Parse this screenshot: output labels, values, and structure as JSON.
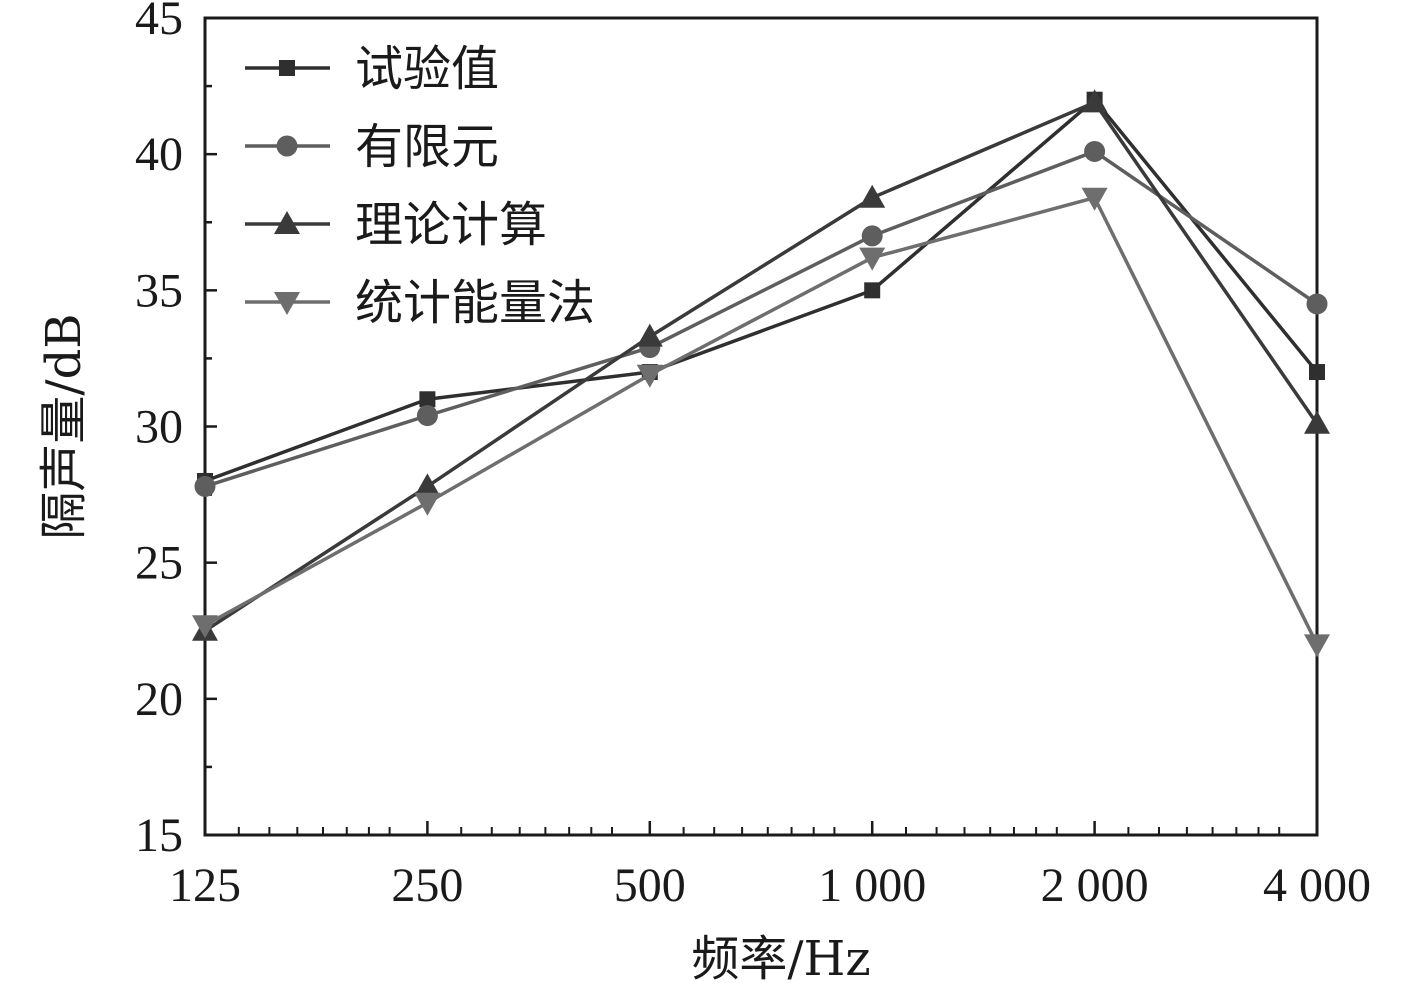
{
  "chart_data": {
    "type": "line",
    "xlabel": "频率/Hz",
    "ylabel": "隔声量/dB",
    "categories": [
      "125",
      "250",
      "500",
      "1 000",
      "2 000",
      "4 000"
    ],
    "x": [
      125,
      250,
      500,
      1000,
      2000,
      4000
    ],
    "x_scale": "log",
    "ylim": [
      15,
      45
    ],
    "yticks": [
      15,
      20,
      25,
      30,
      35,
      40,
      45
    ],
    "grid": false,
    "legend_position": "top-left",
    "series": [
      {
        "name": "试验值",
        "marker": "square",
        "color": "#2f2f2f",
        "values": [
          28.0,
          31.0,
          32.0,
          35.0,
          42.0,
          32.0
        ]
      },
      {
        "name": "有限元",
        "marker": "circle",
        "color": "#5e5e5e",
        "values": [
          27.8,
          30.4,
          32.9,
          37.0,
          40.1,
          34.5
        ]
      },
      {
        "name": "理论计算",
        "marker": "triangle-up",
        "color": "#3a3a3a",
        "values": [
          22.5,
          27.8,
          33.3,
          38.4,
          41.9,
          30.1
        ]
      },
      {
        "name": "统计能量法",
        "marker": "triangle-down",
        "color": "#6e6e6e",
        "values": [
          22.7,
          27.2,
          31.9,
          36.2,
          38.4,
          22.0
        ]
      }
    ]
  }
}
